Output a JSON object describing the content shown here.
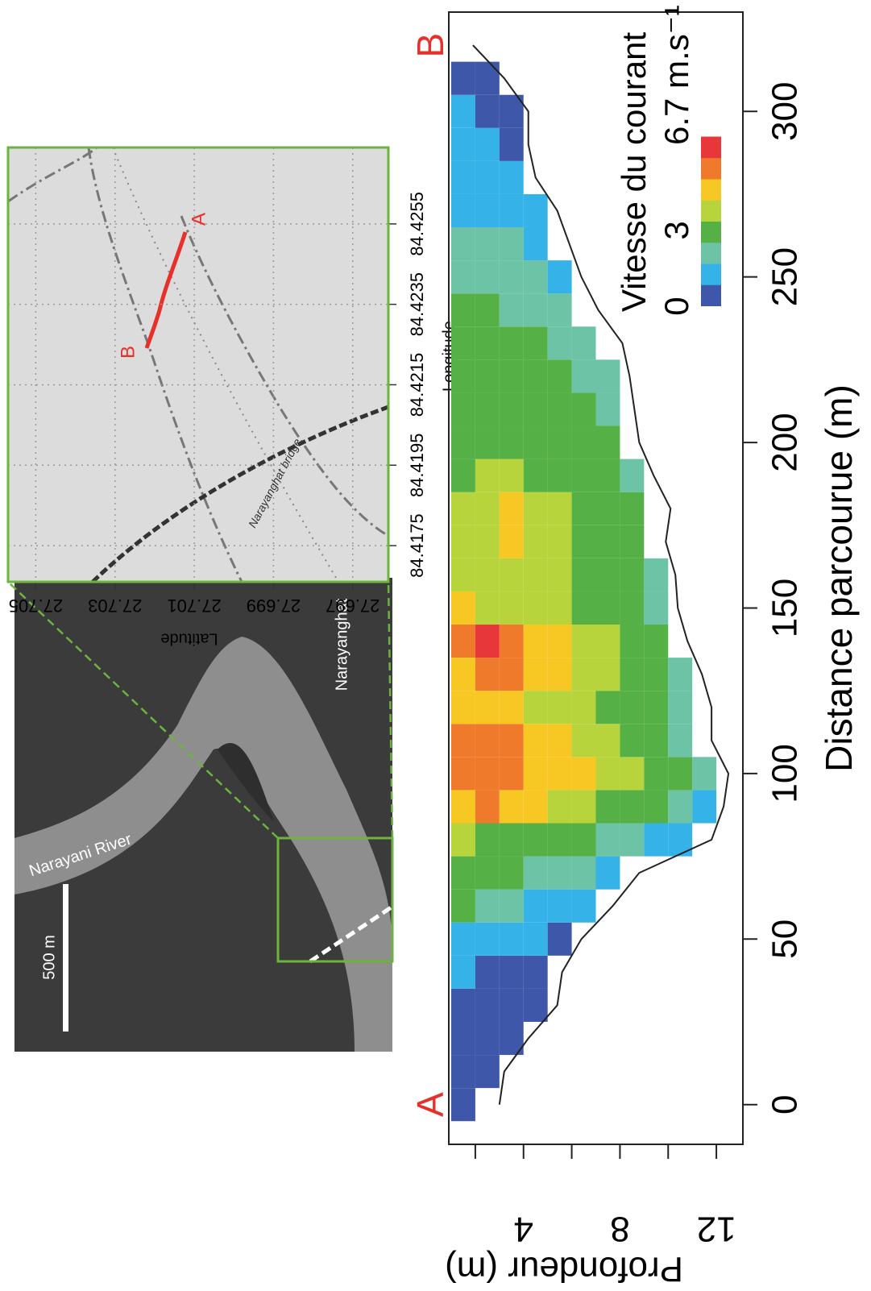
{
  "chart_data": {
    "type": "heatmap",
    "xlabel": "Distance parcourue (m)",
    "ylabel": "Profondeur (m)",
    "xlim": [
      -12,
      330
    ],
    "ylim": [
      0.9,
      13.1
    ],
    "xticks": [
      0,
      50,
      100,
      150,
      200,
      250,
      300
    ],
    "yticks": [
      4,
      8,
      12
    ],
    "minor_yticks": [
      2,
      6,
      10
    ],
    "end_labels": [
      "A",
      "B"
    ],
    "x": [
      0,
      10,
      20,
      30,
      40,
      50,
      60,
      70,
      80,
      90,
      100,
      110,
      120,
      130,
      140,
      150,
      160,
      170,
      180,
      190,
      200,
      210,
      220,
      230,
      240,
      250,
      260,
      270,
      280,
      290,
      300,
      310
    ],
    "y_edges": [
      1,
      2,
      3,
      4,
      5,
      6,
      7,
      8,
      9,
      10,
      11,
      12
    ],
    "z": [
      [
        0.3
      ],
      [
        0.4,
        0.3
      ],
      [
        0.6,
        0.5,
        0.3
      ],
      [
        0.7,
        0.6,
        0.5,
        0.4
      ],
      [
        1.0,
        0.8,
        0.7,
        0.5
      ],
      [
        1.5,
        1.3,
        1.1,
        0.9,
        0.6
      ],
      [
        2.6,
        2.4,
        2.2,
        1.4,
        1.2,
        0.9
      ],
      [
        3.0,
        2.8,
        2.7,
        2.5,
        2.3,
        1.8,
        1.2
      ],
      [
        3.4,
        3.2,
        3.0,
        2.9,
        2.7,
        2.6,
        2.4,
        2.0,
        1.5,
        1.1
      ],
      [
        4.9,
        5.2,
        4.6,
        4.3,
        3.9,
        3.6,
        3.3,
        3.0,
        2.7,
        2.2,
        1.6
      ],
      [
        5.3,
        5.8,
        5.5,
        5.0,
        4.6,
        4.2,
        3.8,
        3.4,
        3.0,
        2.6,
        2.0
      ],
      [
        5.1,
        5.6,
        5.2,
        4.9,
        4.4,
        4.1,
        3.7,
        3.3,
        2.9,
        2.4
      ],
      [
        4.8,
        4.5,
        4.3,
        4.0,
        3.7,
        3.5,
        3.2,
        2.9,
        2.6,
        2.2
      ],
      [
        5.0,
        5.7,
        5.3,
        4.7,
        4.2,
        3.9,
        3.6,
        3.3,
        2.9,
        2.5
      ],
      [
        5.4,
        5.9,
        5.5,
        5.0,
        4.5,
        4.1,
        3.7,
        3.3,
        2.8
      ],
      [
        4.2,
        4.0,
        3.8,
        3.6,
        3.4,
        3.2,
        3.0,
        2.7,
        2.4
      ],
      [
        3.8,
        4.1,
        3.9,
        3.6,
        3.4,
        3.3,
        3.1,
        2.8,
        2.5
      ],
      [
        3.6,
        3.9,
        4.3,
        3.7,
        3.5,
        3.2,
        3.0,
        2.7
      ],
      [
        3.5,
        3.8,
        4.6,
        4.0,
        3.6,
        3.3,
        3.0,
        2.7
      ],
      [
        3.3,
        3.5,
        3.4,
        3.2,
        3.0,
        2.9,
        2.7,
        2.5
      ],
      [
        3.0,
        3.2,
        3.1,
        3.0,
        2.9,
        2.8,
        2.6
      ],
      [
        2.9,
        3.0,
        2.9,
        2.8,
        2.7,
        2.6,
        2.5
      ],
      [
        2.8,
        2.9,
        2.8,
        2.7,
        2.6,
        2.5,
        2.3
      ],
      [
        2.7,
        2.8,
        2.7,
        2.6,
        2.4,
        2.1
      ],
      [
        2.6,
        2.7,
        2.5,
        2.3,
        1.8
      ],
      [
        2.5,
        2.4,
        2.2,
        1.7,
        1.3
      ],
      [
        2.4,
        2.3,
        1.9,
        1.4
      ],
      [
        1.6,
        1.5,
        1.3,
        1.0
      ],
      [
        1.3,
        1.2,
        0.9
      ],
      [
        1.2,
        1.0,
        0.8
      ],
      [
        1.0,
        0.8,
        0.6
      ],
      [
        0.5,
        0.4
      ]
    ],
    "bed": {
      "color": "#222222",
      "x": [
        0,
        10,
        20,
        30,
        40,
        50,
        60,
        70,
        80,
        90,
        100,
        110,
        120,
        130,
        140,
        150,
        160,
        170,
        180,
        190,
        200,
        210,
        220,
        230,
        240,
        250,
        260,
        270,
        280,
        290,
        300,
        310,
        320
      ],
      "depth": [
        3.0,
        3.2,
        4.2,
        5.4,
        5.6,
        6.4,
        7.7,
        8.8,
        11.8,
        12.3,
        12.5,
        11.8,
        11.8,
        11.4,
        10.8,
        10.4,
        10.3,
        9.9,
        10.1,
        9.4,
        8.8,
        8.6,
        8.4,
        8.1,
        7.1,
        6.4,
        5.9,
        5.4,
        4.5,
        4.2,
        4.2,
        3.2,
        1.9
      ]
    },
    "colorscale": {
      "label": "Vitesse du courant",
      "lim": [
        0,
        6.7
      ],
      "colors": [
        "#3f57a8",
        "#35b2e8",
        "#6cc3a5",
        "#55b046",
        "#b8d43c",
        "#f7c823",
        "#f07a2c",
        "#e8373a"
      ],
      "ticks": [
        0,
        3,
        {
          "value": 6.7,
          "label": "6.7 m.s⁻¹"
        }
      ]
    }
  },
  "map_panel": {
    "xlabel": "Longitude",
    "ylabel": "Latitude",
    "lon_lim": [
      84.4166,
      84.4274
    ],
    "lat_lim": [
      27.7057,
      27.6961
    ],
    "lon_ticks": [
      84.4175,
      84.4195,
      84.4215,
      84.4235,
      84.4255
    ],
    "lat_ticks": [
      27.705,
      27.703,
      27.701,
      27.699,
      27.697
    ],
    "track_labels": [
      "A",
      "B"
    ],
    "bridge_label": "Narayanghat bridge"
  },
  "overview_panel": {
    "river_label": "Narayani River",
    "town_label": "Narayanghat",
    "scale_label": "500 m"
  }
}
